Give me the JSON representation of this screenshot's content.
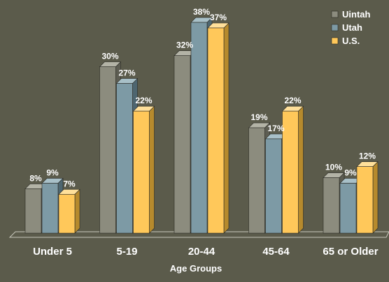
{
  "chart_data": {
    "type": "bar",
    "title": "",
    "xlabel": "Age Groups",
    "ylabel": "",
    "ylim": [
      0,
      40
    ],
    "grid": false,
    "legend_position": "top-right",
    "categories": [
      "Under 5",
      "5-19",
      "20-44",
      "45-64",
      "65 or Older"
    ],
    "series": [
      {
        "name": "Uintah",
        "values": [
          8,
          30,
          32,
          19,
          10
        ],
        "labels": [
          "8%",
          "30%",
          "32%",
          "19%",
          "10%"
        ],
        "color": "#8c8c7e",
        "side_color": "#5d5d52",
        "top_color": "#b3b3a6"
      },
      {
        "name": "Utah",
        "values": [
          9,
          27,
          38,
          17,
          9
        ],
        "labels": [
          "9%",
          "27%",
          "38%",
          "17%",
          "9%"
        ],
        "color": "#7d9aa5",
        "side_color": "#4e6670",
        "top_color": "#a8c0c8"
      },
      {
        "name": "U.S.",
        "values": [
          7,
          22,
          37,
          22,
          12
        ],
        "labels": [
          "7%",
          "22%",
          "37%",
          "22%",
          "12%"
        ],
        "color": "#ffc85a",
        "side_color": "#b68a2d",
        "top_color": "#ffe09a"
      }
    ],
    "colors": {
      "background": "#5b5b4b",
      "floor": "#5b5b4b",
      "text": "#ffffff",
      "bar_outline": "#2a2a24"
    }
  }
}
